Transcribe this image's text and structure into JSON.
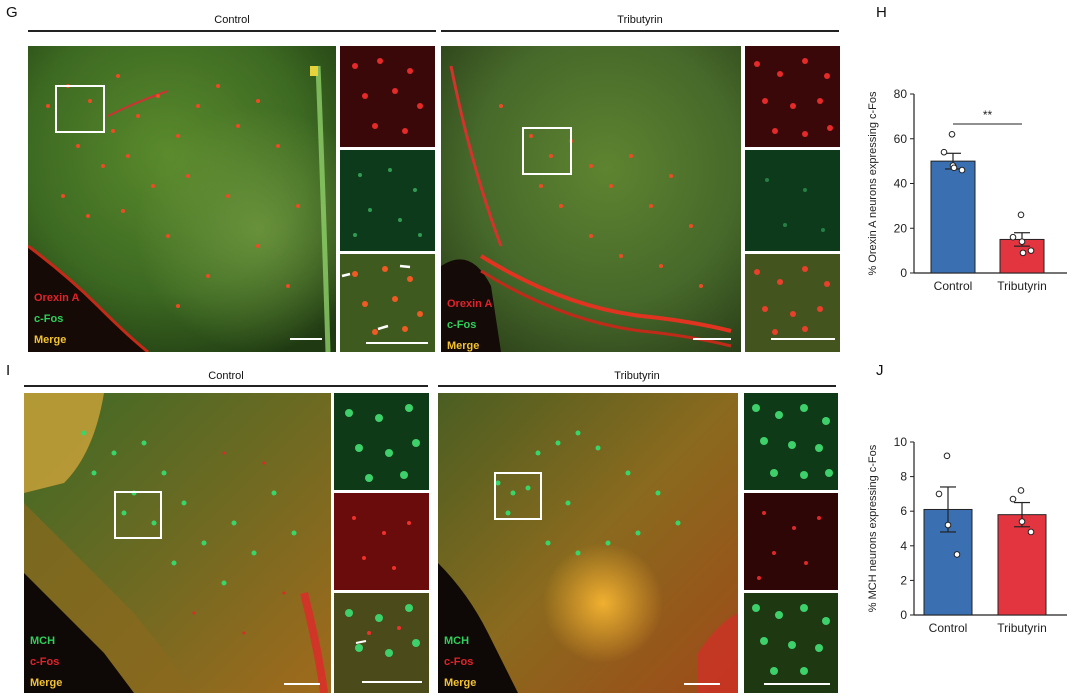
{
  "panels": {
    "G": {
      "label": "G",
      "groups": [
        {
          "title": "Control"
        },
        {
          "title": "Tributyrin"
        }
      ],
      "legend_left": [
        "Orexin A",
        "c-Fos",
        "Merge"
      ],
      "legend_right": [
        "Orexin A",
        "c-Fos",
        "Merge"
      ]
    },
    "I": {
      "label": "I",
      "groups": [
        {
          "title": "Control"
        },
        {
          "title": "Tributyrin"
        }
      ],
      "legend_left": [
        "MCH",
        "c-Fos",
        "Merge"
      ],
      "legend_right": [
        "MCH",
        "c-Fos",
        "Merge"
      ]
    }
  },
  "colors": {
    "red_stain": "#e0232a",
    "green_stain": "#2fcf5a",
    "merge_text": "#f2c230",
    "control_bar": "#3a6fb2",
    "tributyrin_bar": "#e23540"
  },
  "chart_data": [
    {
      "label": "H",
      "type": "bar",
      "categories": [
        "Control",
        "Tributyrin"
      ],
      "values": [
        50,
        15
      ],
      "errors": [
        3.5,
        3
      ],
      "points": [
        [
          62,
          54,
          48,
          46,
          47
        ],
        [
          26,
          16,
          14,
          10,
          9
        ]
      ],
      "ylabel": "% Orexin A neurons expressing c-Fos",
      "ylim": [
        0,
        80
      ],
      "yticks": [
        0,
        20,
        40,
        60,
        80
      ],
      "significance": "**"
    },
    {
      "label": "J",
      "type": "bar",
      "categories": [
        "Control",
        "Tributyrin"
      ],
      "values": [
        6.1,
        5.8
      ],
      "errors": [
        1.3,
        0.7
      ],
      "points": [
        [
          9.2,
          7.0,
          5.2,
          3.5
        ],
        [
          7.2,
          6.7,
          5.4,
          4.8
        ]
      ],
      "ylabel": "% MCH neurons expressing c-Fos",
      "ylim": [
        0,
        10
      ],
      "yticks": [
        0,
        2,
        4,
        6,
        8,
        10
      ],
      "significance": ""
    }
  ]
}
